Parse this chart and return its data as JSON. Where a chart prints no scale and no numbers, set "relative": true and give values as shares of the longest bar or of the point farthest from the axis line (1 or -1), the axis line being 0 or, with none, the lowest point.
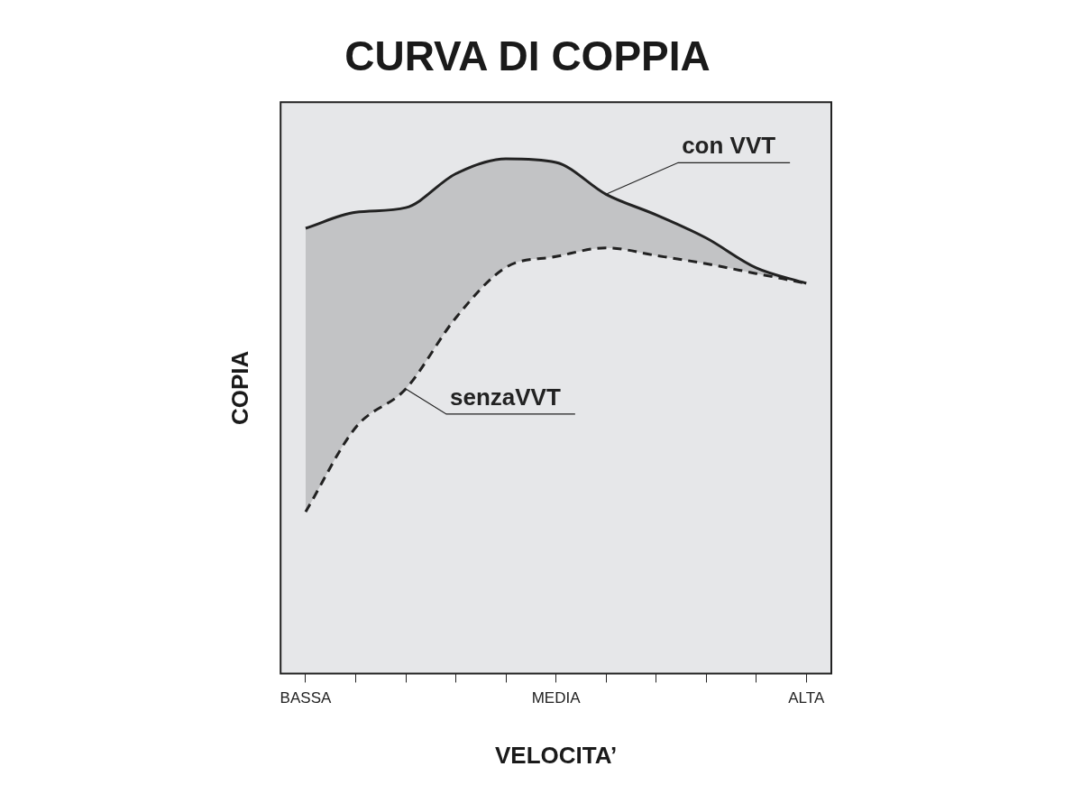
{
  "chart_data": {
    "type": "line",
    "title": "CURVA DI COPPIA",
    "xlabel": "VELOCITA’",
    "ylabel": "COPIA",
    "relative": true,
    "legend": false,
    "grid": false,
    "marker": "none",
    "categories": [
      "BASSA",
      null,
      null,
      null,
      null,
      "MEDIA",
      null,
      null,
      null,
      null,
      "ALTA"
    ],
    "series": [
      {
        "name": "con VVT",
        "type": "area",
        "color": "#222222",
        "line_style": "solid",
        "values": [
          0.865,
          0.896,
          0.905,
          0.971,
          1,
          0.993,
          0.931,
          0.891,
          0.846,
          0.788,
          0.758
        ]
      },
      {
        "name": "senzaVVT",
        "type": "line",
        "color": "#222222",
        "line_style": "dashed",
        "values": [
          0.314,
          0.478,
          0.553,
          0.691,
          0.789,
          0.81,
          0.827,
          0.812,
          0.796,
          0.777,
          0.758
        ]
      }
    ]
  }
}
